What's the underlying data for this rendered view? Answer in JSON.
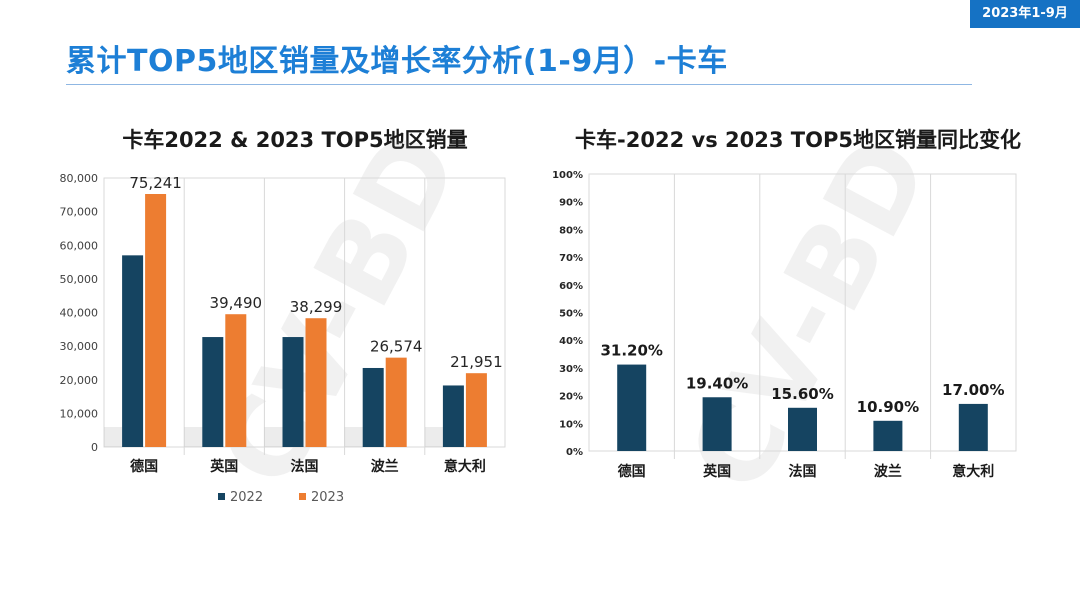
{
  "header": {
    "date_badge": "2023年1-9月",
    "page_title": "累计TOP5地区销量及增长率分析(1-9月）-卡车"
  },
  "watermark": "CV-BD",
  "colors": {
    "series_2022": "#154461",
    "series_2023": "#ed7d31",
    "growth_bar": "#154461",
    "title_blue": "#1d7fd6"
  },
  "chart_data": [
    {
      "type": "bar",
      "title": "卡车2022 & 2023 TOP5地区销量",
      "categories": [
        "德国",
        "英国",
        "法国",
        "波兰",
        "意大利"
      ],
      "series": [
        {
          "name": "2022",
          "values": [
            57000,
            32700,
            32700,
            23500,
            18300
          ]
        },
        {
          "name": "2023",
          "values": [
            75241,
            39490,
            38299,
            26574,
            21951
          ]
        }
      ],
      "data_labels": [
        "75,241",
        "39,490",
        "38,299",
        "26,574",
        "21,951"
      ],
      "y_ticks": [
        "0",
        "10,000",
        "20,000",
        "30,000",
        "40,000",
        "50,000",
        "60,000",
        "70,000",
        "80,000"
      ],
      "ylim": [
        0,
        80000
      ],
      "legend": [
        "2022",
        "2023"
      ]
    },
    {
      "type": "bar",
      "title": "卡车-2022 vs 2023 TOP5地区销量同比变化",
      "categories": [
        "德国",
        "英国",
        "法国",
        "波兰",
        "意大利"
      ],
      "values": [
        31.2,
        19.4,
        15.6,
        10.9,
        17.0
      ],
      "data_labels": [
        "31.20%",
        "19.40%",
        "15.60%",
        "10.90%",
        "17.00%"
      ],
      "y_ticks": [
        "0%",
        "10%",
        "20%",
        "30%",
        "40%",
        "50%",
        "60%",
        "70%",
        "80%",
        "90%",
        "100%"
      ],
      "ylim": [
        0,
        100
      ]
    }
  ]
}
